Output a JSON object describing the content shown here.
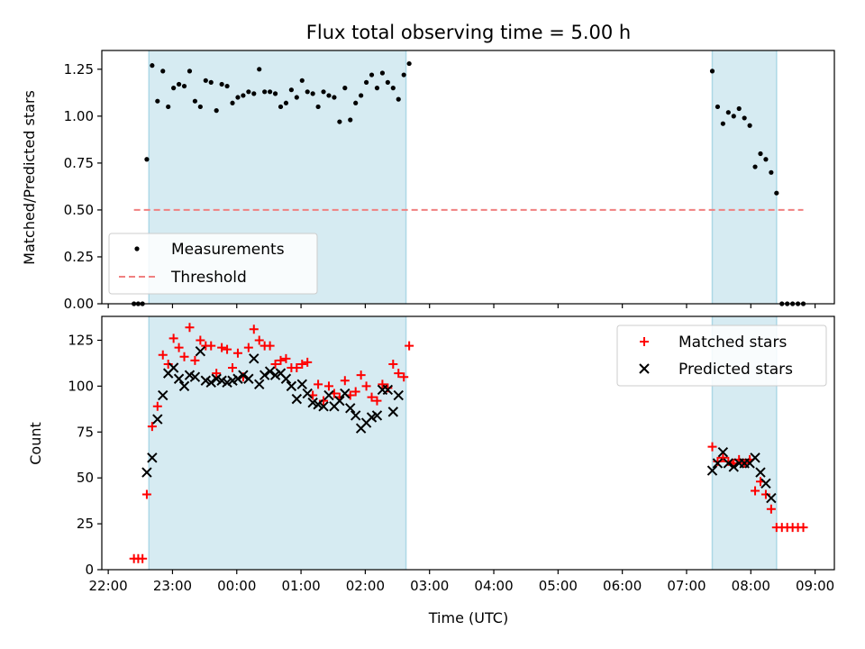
{
  "chart_data": [
    {
      "type": "scatter",
      "title": "Flux total observing time = 5.00 h",
      "xlabel": "",
      "ylabel": "Matched/Predicted stars",
      "ylim": [
        0,
        1.35
      ],
      "xlim": [
        "21:54",
        "09:18"
      ],
      "yticks": [
        "0.00",
        "0.25",
        "0.50",
        "0.75",
        "1.00",
        "1.25"
      ],
      "grid": false,
      "legend_position": "lower-left",
      "shaded_intervals": [
        [
          "22:38",
          "02:38"
        ],
        [
          "07:24",
          "08:24"
        ]
      ],
      "shade_color": "#add8e6",
      "series": [
        {
          "name": "Measurements",
          "marker": "dot",
          "color": "#000000",
          "points": [
            [
              "22:24",
              0
            ],
            [
              "22:28",
              0
            ],
            [
              "22:32",
              0
            ],
            [
              "22:36",
              0.77
            ],
            [
              "22:41",
              1.27
            ],
            [
              "22:46",
              1.08
            ],
            [
              "22:51",
              1.24
            ],
            [
              "22:56",
              1.05
            ],
            [
              "23:01",
              1.15
            ],
            [
              "23:06",
              1.17
            ],
            [
              "23:11",
              1.16
            ],
            [
              "23:16",
              1.24
            ],
            [
              "23:21",
              1.08
            ],
            [
              "23:26",
              1.05
            ],
            [
              "23:31",
              1.19
            ],
            [
              "23:36",
              1.18
            ],
            [
              "23:41",
              1.03
            ],
            [
              "23:46",
              1.17
            ],
            [
              "23:51",
              1.16
            ],
            [
              "23:56",
              1.07
            ],
            [
              "00:01",
              1.1
            ],
            [
              "00:06",
              1.11
            ],
            [
              "00:11",
              1.13
            ],
            [
              "00:16",
              1.12
            ],
            [
              "00:21",
              1.25
            ],
            [
              "00:26",
              1.13
            ],
            [
              "00:31",
              1.13
            ],
            [
              "00:36",
              1.12
            ],
            [
              "00:41",
              1.05
            ],
            [
              "00:46",
              1.07
            ],
            [
              "00:51",
              1.14
            ],
            [
              "00:56",
              1.1
            ],
            [
              "01:01",
              1.19
            ],
            [
              "01:06",
              1.13
            ],
            [
              "01:11",
              1.12
            ],
            [
              "01:16",
              1.05
            ],
            [
              "01:21",
              1.13
            ],
            [
              "01:26",
              1.11
            ],
            [
              "01:31",
              1.1
            ],
            [
              "01:36",
              0.97
            ],
            [
              "01:41",
              1.15
            ],
            [
              "01:46",
              0.98
            ],
            [
              "01:51",
              1.07
            ],
            [
              "01:56",
              1.11
            ],
            [
              "02:01",
              1.18
            ],
            [
              "02:06",
              1.22
            ],
            [
              "02:11",
              1.15
            ],
            [
              "02:16",
              1.23
            ],
            [
              "02:21",
              1.18
            ],
            [
              "02:26",
              1.15
            ],
            [
              "02:31",
              1.09
            ],
            [
              "02:36",
              1.22
            ],
            [
              "02:41",
              1.28
            ],
            [
              "07:24",
              1.24
            ],
            [
              "07:29",
              1.05
            ],
            [
              "07:34",
              0.96
            ],
            [
              "07:39",
              1.02
            ],
            [
              "07:44",
              1.0
            ],
            [
              "07:49",
              1.04
            ],
            [
              "07:54",
              0.99
            ],
            [
              "07:59",
              0.95
            ],
            [
              "08:04",
              0.73
            ],
            [
              "08:09",
              0.8
            ],
            [
              "08:14",
              0.77
            ],
            [
              "08:19",
              0.7
            ],
            [
              "08:24",
              0.59
            ],
            [
              "08:29",
              0
            ],
            [
              "08:34",
              0
            ],
            [
              "08:39",
              0
            ],
            [
              "08:44",
              0
            ],
            [
              "08:49",
              0
            ]
          ]
        },
        {
          "name": "Threshold",
          "type": "line",
          "style": "dashed",
          "color": "#f08080",
          "points": [
            [
              "22:24",
              0.5
            ],
            [
              "08:49",
              0.5
            ]
          ]
        }
      ]
    },
    {
      "type": "scatter",
      "title": "",
      "xlabel": "Time (UTC)",
      "ylabel": "Count",
      "ylim": [
        0,
        138
      ],
      "xlim": [
        "21:54",
        "09:18"
      ],
      "yticks": [
        "0",
        "25",
        "50",
        "75",
        "100",
        "125"
      ],
      "xticks": [
        "22:00",
        "23:00",
        "00:00",
        "01:00",
        "02:00",
        "03:00",
        "04:00",
        "05:00",
        "06:00",
        "07:00",
        "08:00",
        "09:00"
      ],
      "grid": false,
      "legend_position": "upper-right",
      "shaded_intervals": [
        [
          "22:38",
          "02:38"
        ],
        [
          "07:24",
          "08:24"
        ]
      ],
      "shade_color": "#add8e6",
      "series": [
        {
          "name": "Matched stars",
          "marker": "plus",
          "color": "#ff0000",
          "points": [
            [
              "22:24",
              6
            ],
            [
              "22:28",
              6
            ],
            [
              "22:32",
              6
            ],
            [
              "22:36",
              41
            ],
            [
              "22:41",
              78
            ],
            [
              "22:46",
              89
            ],
            [
              "22:51",
              117
            ],
            [
              "22:56",
              112
            ],
            [
              "23:01",
              126
            ],
            [
              "23:06",
              121
            ],
            [
              "23:11",
              116
            ],
            [
              "23:16",
              132
            ],
            [
              "23:21",
              114
            ],
            [
              "23:26",
              125
            ],
            [
              "23:31",
              122
            ],
            [
              "23:36",
              122
            ],
            [
              "23:41",
              107
            ],
            [
              "23:46",
              121
            ],
            [
              "23:51",
              120
            ],
            [
              "23:56",
              110
            ],
            [
              "00:01",
              118
            ],
            [
              "00:06",
              105
            ],
            [
              "00:11",
              121
            ],
            [
              "00:16",
              131
            ],
            [
              "00:21",
              125
            ],
            [
              "00:26",
              122
            ],
            [
              "00:31",
              122
            ],
            [
              "00:36",
              112
            ],
            [
              "00:41",
              114
            ],
            [
              "00:46",
              115
            ],
            [
              "00:51",
              110
            ],
            [
              "00:56",
              110
            ],
            [
              "01:01",
              112
            ],
            [
              "01:06",
              113
            ],
            [
              "01:11",
              95
            ],
            [
              "01:16",
              101
            ],
            [
              "01:21",
              92
            ],
            [
              "01:26",
              100
            ],
            [
              "01:31",
              96
            ],
            [
              "01:36",
              94
            ],
            [
              "01:41",
              103
            ],
            [
              "01:46",
              95
            ],
            [
              "01:51",
              97
            ],
            [
              "01:56",
              106
            ],
            [
              "02:01",
              100
            ],
            [
              "02:06",
              94
            ],
            [
              "02:11",
              92
            ],
            [
              "02:16",
              101
            ],
            [
              "02:21",
              99
            ],
            [
              "02:26",
              112
            ],
            [
              "02:31",
              107
            ],
            [
              "02:36",
              105
            ],
            [
              "02:41",
              122
            ],
            [
              "07:24",
              67
            ],
            [
              "07:29",
              59
            ],
            [
              "07:34",
              61
            ],
            [
              "07:39",
              59
            ],
            [
              "07:44",
              58
            ],
            [
              "07:49",
              60
            ],
            [
              "07:54",
              58
            ],
            [
              "07:59",
              60
            ],
            [
              "08:04",
              43
            ],
            [
              "08:09",
              48
            ],
            [
              "08:14",
              41
            ],
            [
              "08:19",
              33
            ],
            [
              "08:24",
              23
            ],
            [
              "08:29",
              23
            ],
            [
              "08:34",
              23
            ],
            [
              "08:39",
              23
            ],
            [
              "08:44",
              23
            ],
            [
              "08:49",
              23
            ]
          ]
        },
        {
          "name": "Predicted stars",
          "marker": "x",
          "color": "#000000",
          "points": [
            [
              "22:36",
              53
            ],
            [
              "22:41",
              61
            ],
            [
              "22:46",
              82
            ],
            [
              "22:51",
              95
            ],
            [
              "22:56",
              107
            ],
            [
              "23:01",
              110
            ],
            [
              "23:06",
              104
            ],
            [
              "23:11",
              100
            ],
            [
              "23:16",
              106
            ],
            [
              "23:21",
              105
            ],
            [
              "23:26",
              119
            ],
            [
              "23:31",
              103
            ],
            [
              "23:36",
              102
            ],
            [
              "23:41",
              104
            ],
            [
              "23:46",
              103
            ],
            [
              "23:51",
              102
            ],
            [
              "23:56",
              103
            ],
            [
              "00:01",
              104
            ],
            [
              "00:06",
              106
            ],
            [
              "00:11",
              104
            ],
            [
              "00:16",
              115
            ],
            [
              "00:21",
              101
            ],
            [
              "00:26",
              106
            ],
            [
              "00:31",
              108
            ],
            [
              "00:36",
              106
            ],
            [
              "00:41",
              107
            ],
            [
              "00:46",
              104
            ],
            [
              "00:51",
              100
            ],
            [
              "00:56",
              93
            ],
            [
              "01:01",
              101
            ],
            [
              "01:06",
              96
            ],
            [
              "01:11",
              91
            ],
            [
              "01:16",
              90
            ],
            [
              "01:21",
              89
            ],
            [
              "01:26",
              95
            ],
            [
              "01:31",
              89
            ],
            [
              "01:36",
              92
            ],
            [
              "01:41",
              96
            ],
            [
              "01:46",
              88
            ],
            [
              "01:51",
              84
            ],
            [
              "01:56",
              77
            ],
            [
              "02:01",
              80
            ],
            [
              "02:06",
              83
            ],
            [
              "02:11",
              84
            ],
            [
              "02:16",
              98
            ],
            [
              "02:21",
              98
            ],
            [
              "02:26",
              86
            ],
            [
              "02:31",
              95
            ],
            [
              "07:24",
              54
            ],
            [
              "07:29",
              58
            ],
            [
              "07:34",
              64
            ],
            [
              "07:39",
              58
            ],
            [
              "07:44",
              56
            ],
            [
              "07:49",
              58
            ],
            [
              "07:54",
              58
            ],
            [
              "07:59",
              58
            ],
            [
              "08:04",
              61
            ],
            [
              "08:09",
              53
            ],
            [
              "08:14",
              47
            ],
            [
              "08:19",
              39
            ]
          ]
        }
      ]
    }
  ]
}
